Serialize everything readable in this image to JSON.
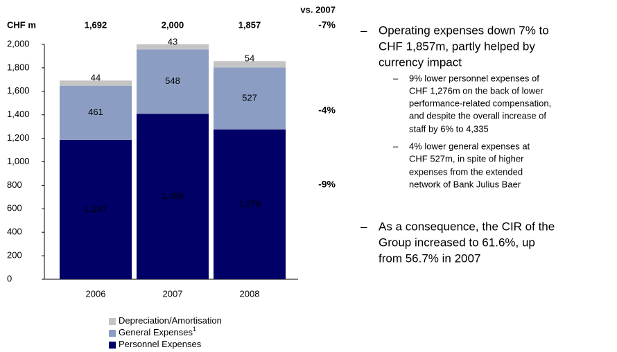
{
  "chart_data": {
    "type": "stacked_bar",
    "unit_label": "CHF m",
    "categories": [
      "2006",
      "2007",
      "2008"
    ],
    "column_totals": [
      "1,692",
      "2,000",
      "1,857"
    ],
    "change_header": "vs. 2007",
    "changes": [
      "-7%",
      "-4%",
      "-9%"
    ],
    "series": [
      {
        "name": "Personnel Expenses",
        "color": "#000066",
        "values": [
          1187,
          1409,
          1276
        ],
        "value_labels": [
          "1,187",
          "1,409",
          "1,276"
        ],
        "label_color": "#ffffff"
      },
      {
        "name": "General Expenses",
        "footnote_marker": "1",
        "color": "#8b9dc3",
        "values": [
          461,
          548,
          527
        ],
        "label_color": "#ffffff"
      },
      {
        "name": "Depreciation/Amortisation",
        "color": "#c4c4c4",
        "values": [
          44,
          43,
          54
        ],
        "label_color": "#000000"
      }
    ],
    "ylim": [
      0,
      2000
    ],
    "yticks": [
      0,
      200,
      400,
      600,
      800,
      {
        "value": 1000,
        "label": "1,000"
      },
      {
        "value": 1200,
        "label": "1,200"
      },
      {
        "value": 1400,
        "label": "1,400"
      },
      {
        "value": 1600,
        "label": "1,600"
      },
      {
        "value": 1800,
        "label": "1,800"
      },
      {
        "value": 2000,
        "label": "2,000"
      }
    ]
  },
  "bullets": [
    {
      "lines": [
        "Operating expenses down 7% to",
        "CHF 1,857m, partly helped by",
        "currency impact"
      ],
      "sub": [
        {
          "lines": [
            "9% lower personnel expenses of",
            "CHF 1,276m on the back of lower",
            "performance-related compensation,",
            "and despite the overall increase of",
            "staff by 6% to 4,335"
          ]
        },
        {
          "lines": [
            "4% lower general expenses at",
            "CHF 527m, in spite of higher",
            "expenses from the extended",
            "network of Bank Julius Baer"
          ]
        }
      ]
    },
    {
      "lines": [
        "As a consequence, the CIR of the",
        "Group increased to 61.6%, up",
        "from 56.7% in 2007"
      ],
      "sub": []
    }
  ]
}
